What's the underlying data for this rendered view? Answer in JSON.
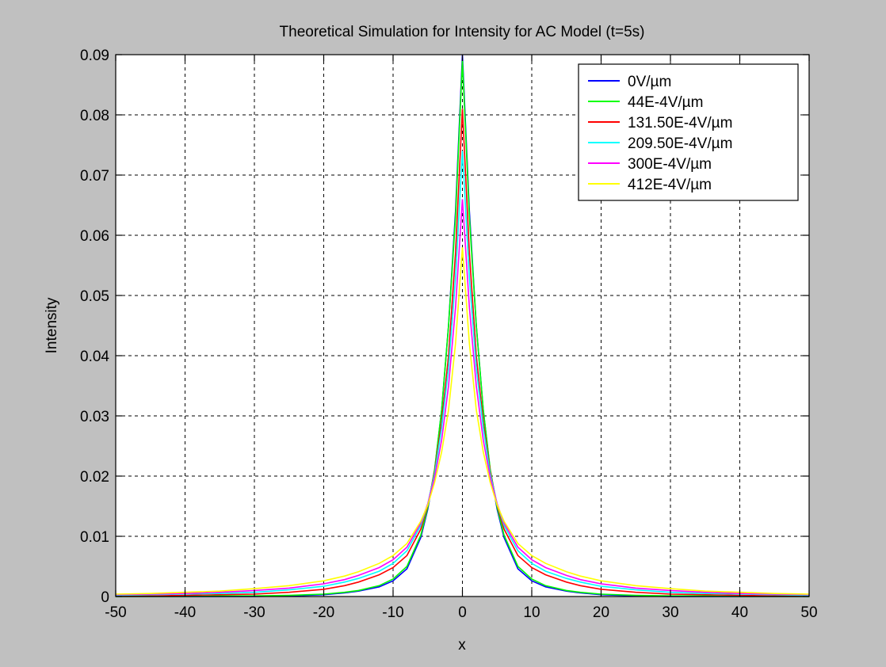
{
  "chart_data": {
    "type": "line",
    "title": "Theoretical Simulation for Intensity for AC Model (t=5s)",
    "xlabel": "x",
    "ylabel": "Intensity",
    "xlim": [
      -50,
      50
    ],
    "ylim": [
      0,
      0.09
    ],
    "xticks": [
      "-50",
      "-40",
      "-30",
      "-20",
      "-10",
      "0",
      "10",
      "20",
      "30",
      "40",
      "50"
    ],
    "yticks": [
      "0",
      "0.01",
      "0.02",
      "0.03",
      "0.04",
      "0.05",
      "0.06",
      "0.07",
      "0.08",
      "0.09"
    ],
    "grid": true,
    "legend_position": "top-right",
    "x": [
      -50,
      -45,
      -40,
      -35,
      -30,
      -25,
      -20,
      -17,
      -15,
      -12,
      -10,
      -8,
      -6,
      -5,
      -4,
      -3,
      -2,
      -1,
      0,
      1,
      2,
      3,
      4,
      5,
      6,
      8,
      10,
      12,
      15,
      17,
      20,
      25,
      30,
      35,
      40,
      45,
      50
    ],
    "series": [
      {
        "name": "0V/µm",
        "color": "#0000ff",
        "values": [
          0.0,
          0.0,
          0.0,
          0.0,
          0.0,
          0.0001,
          0.0003,
          0.0006,
          0.0009,
          0.0016,
          0.0026,
          0.0046,
          0.0098,
          0.0145,
          0.021,
          0.031,
          0.045,
          0.064,
          0.09,
          0.064,
          0.045,
          0.031,
          0.021,
          0.0145,
          0.0098,
          0.0046,
          0.0026,
          0.0016,
          0.0009,
          0.0006,
          0.0003,
          0.0001,
          0.0,
          0.0,
          0.0,
          0.0,
          0.0
        ]
      },
      {
        "name": "44E-4V/µm",
        "color": "#00ff00",
        "values": [
          0.0,
          0.0,
          0.0,
          0.0001,
          0.0001,
          0.0002,
          0.0004,
          0.0007,
          0.001,
          0.0018,
          0.0029,
          0.005,
          0.0102,
          0.0148,
          0.0212,
          0.031,
          0.045,
          0.063,
          0.089,
          0.063,
          0.045,
          0.031,
          0.0212,
          0.0148,
          0.0102,
          0.005,
          0.0029,
          0.0018,
          0.001,
          0.0007,
          0.0004,
          0.0002,
          0.0001,
          0.0001,
          0.0,
          0.0,
          0.0
        ]
      },
      {
        "name": "131.50E-4V/µm",
        "color": "#ff0000",
        "values": [
          0.0001,
          0.0001,
          0.0002,
          0.0003,
          0.0004,
          0.0007,
          0.0012,
          0.0018,
          0.0024,
          0.0036,
          0.0048,
          0.0068,
          0.0112,
          0.0152,
          0.0208,
          0.029,
          0.04,
          0.057,
          0.081,
          0.057,
          0.04,
          0.029,
          0.0208,
          0.0152,
          0.0112,
          0.0068,
          0.0048,
          0.0036,
          0.0024,
          0.0018,
          0.0012,
          0.0007,
          0.0004,
          0.0003,
          0.0002,
          0.0001,
          0.0001
        ]
      },
      {
        "name": "209.50E-4V/µm",
        "color": "#00ffff",
        "values": [
          0.0002,
          0.0003,
          0.0004,
          0.0005,
          0.0007,
          0.0011,
          0.0017,
          0.0024,
          0.003,
          0.0042,
          0.0055,
          0.0076,
          0.0118,
          0.0154,
          0.0204,
          0.028,
          0.038,
          0.053,
          0.074,
          0.053,
          0.038,
          0.028,
          0.0204,
          0.0154,
          0.0118,
          0.0076,
          0.0055,
          0.0042,
          0.003,
          0.0024,
          0.0017,
          0.0011,
          0.0007,
          0.0005,
          0.0004,
          0.0003,
          0.0002
        ]
      },
      {
        "name": "300E-4V/µm",
        "color": "#ff00ff",
        "values": [
          0.0003,
          0.0004,
          0.0005,
          0.0007,
          0.001,
          0.0014,
          0.0021,
          0.0028,
          0.0035,
          0.0048,
          0.0061,
          0.0082,
          0.0122,
          0.0154,
          0.0198,
          0.026,
          0.035,
          0.048,
          0.066,
          0.048,
          0.035,
          0.026,
          0.0198,
          0.0154,
          0.0122,
          0.0082,
          0.0061,
          0.0048,
          0.0035,
          0.0028,
          0.0021,
          0.0014,
          0.001,
          0.0007,
          0.0005,
          0.0004,
          0.0003
        ]
      },
      {
        "name": "412E-4V/µm",
        "color": "#ffff00",
        "values": [
          0.0004,
          0.0005,
          0.0007,
          0.0009,
          0.0013,
          0.0018,
          0.0026,
          0.0034,
          0.0041,
          0.0055,
          0.0068,
          0.0088,
          0.0125,
          0.0152,
          0.019,
          0.024,
          0.031,
          0.042,
          0.058,
          0.042,
          0.031,
          0.024,
          0.019,
          0.0152,
          0.0125,
          0.0088,
          0.0068,
          0.0055,
          0.0041,
          0.0034,
          0.0026,
          0.0018,
          0.0013,
          0.0009,
          0.0007,
          0.0005,
          0.0004
        ]
      }
    ]
  }
}
